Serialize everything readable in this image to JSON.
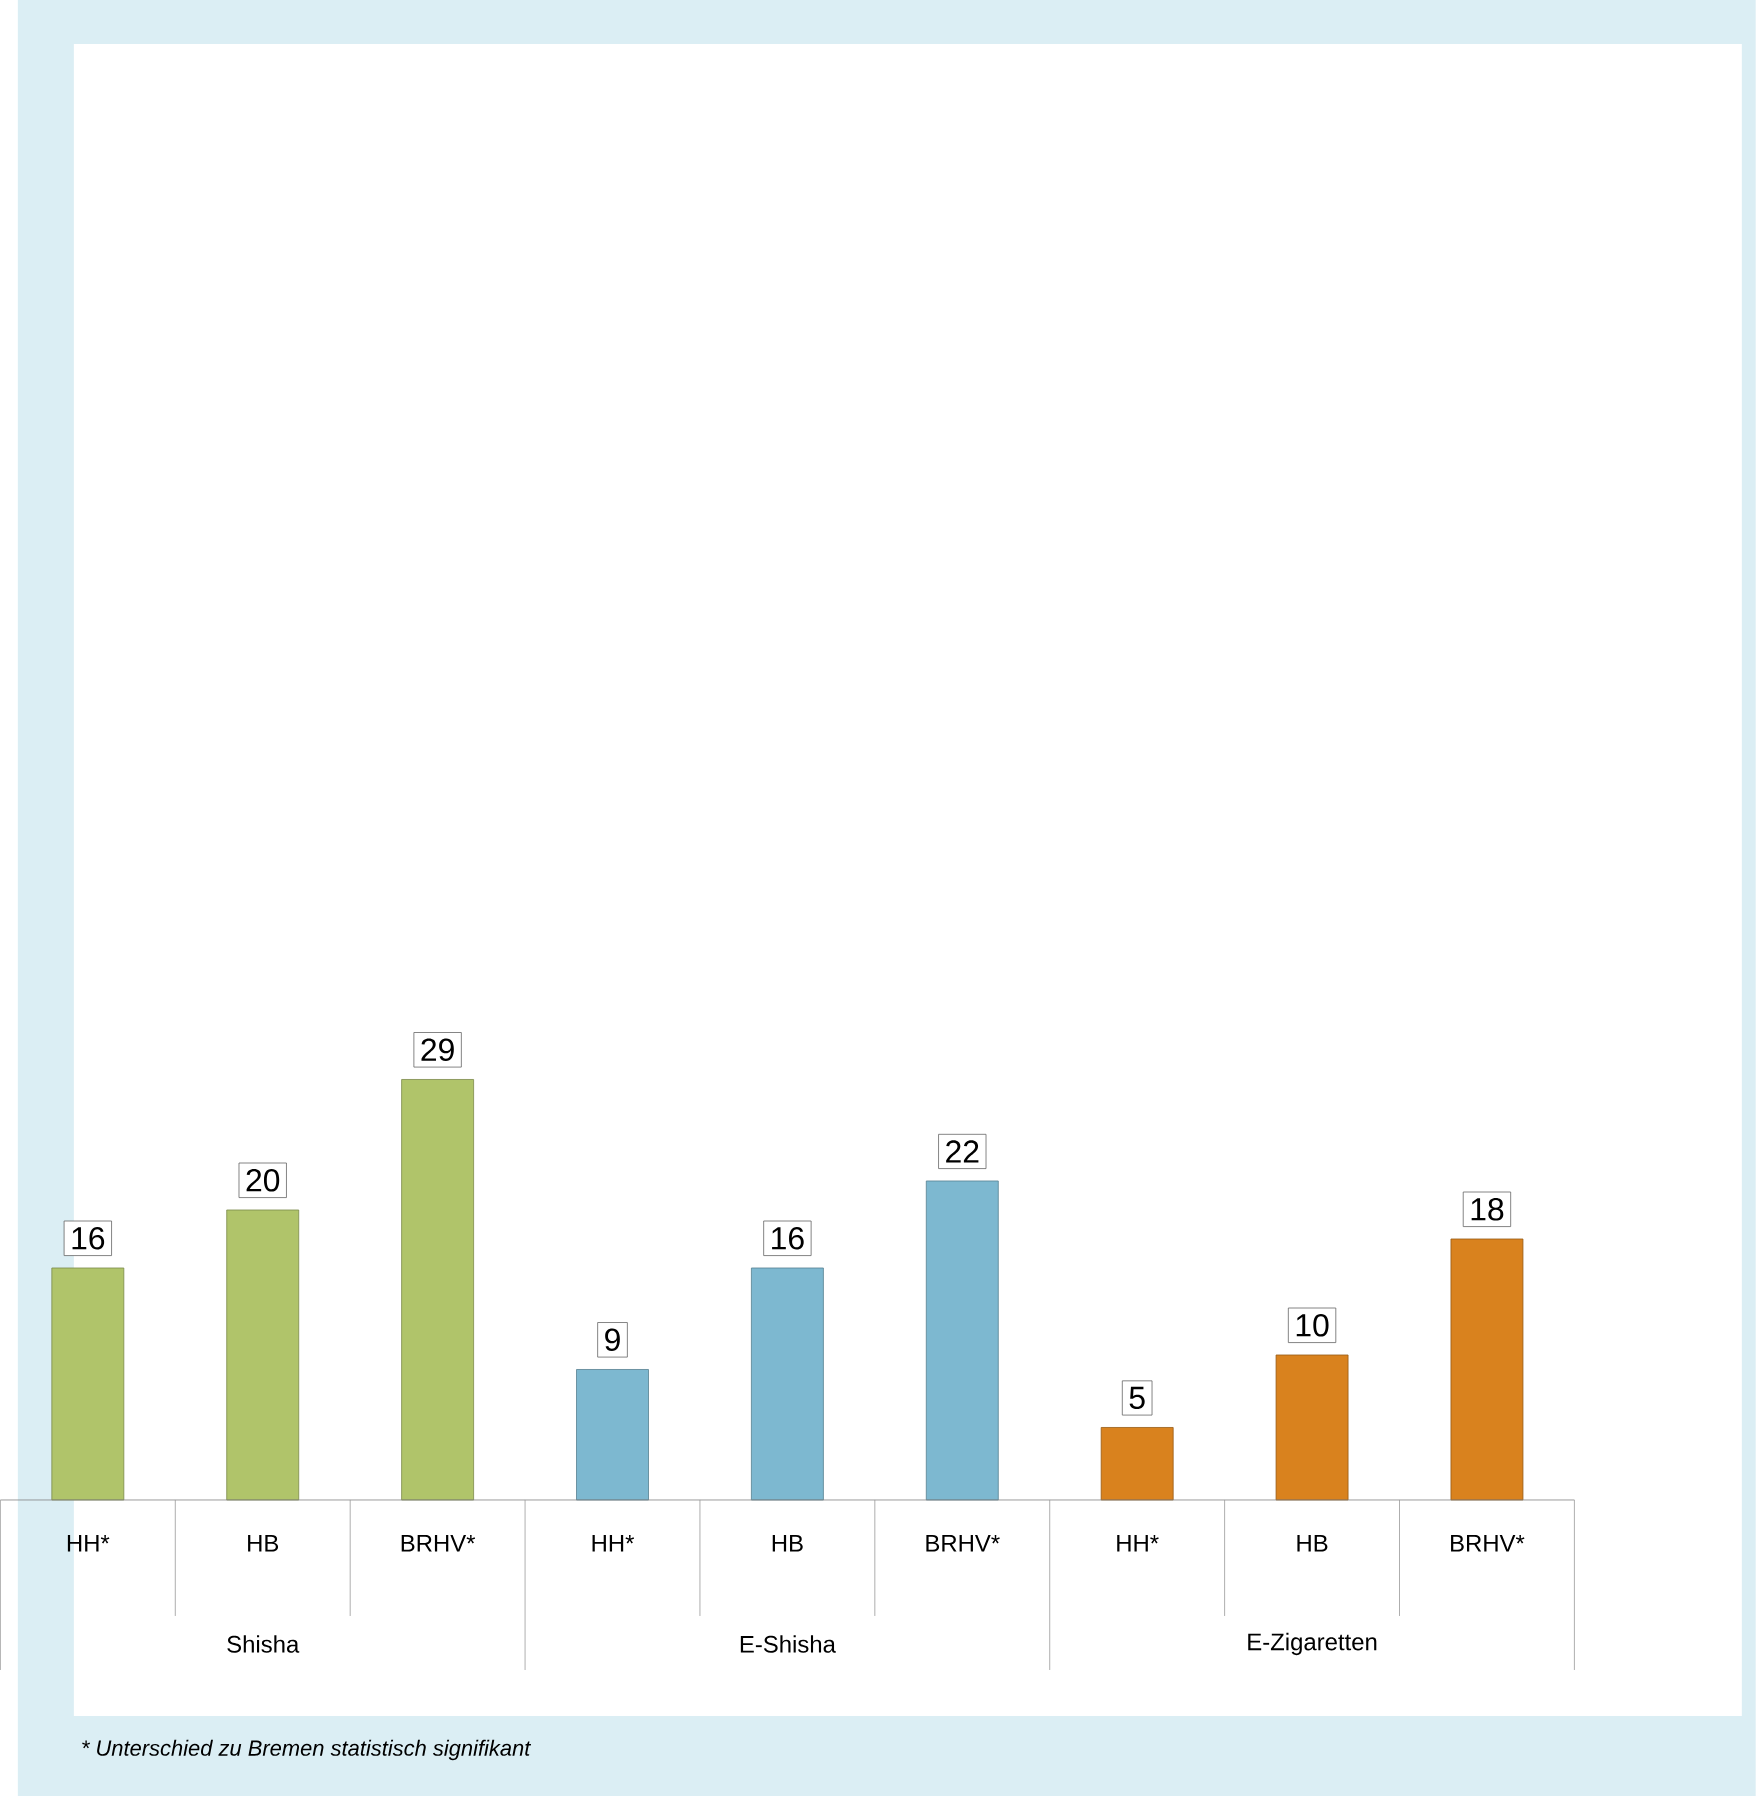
{
  "chart_data": {
    "type": "bar",
    "categories": [
      "HH*",
      "HB",
      "BRHV*",
      "HH*",
      "HB",
      "BRHV*",
      "HH*",
      "HB",
      "BRHV*"
    ],
    "values": [
      16,
      20,
      29,
      9,
      16,
      22,
      5,
      10,
      18
    ],
    "colors": [
      "#b0c46a",
      "#b0c46a",
      "#b0c46a",
      "#7db8d0",
      "#7db8d0",
      "#7db8d0",
      "#d9821e",
      "#d9821e",
      "#d9821e"
    ],
    "ylim": [
      0,
      100
    ],
    "data_labels": true,
    "annotations": [
      "Shisha",
      "E-Shisha",
      "E-Zigaretten",
      "* Unterschied zu Bremen statistisch signifikant"
    ]
  }
}
